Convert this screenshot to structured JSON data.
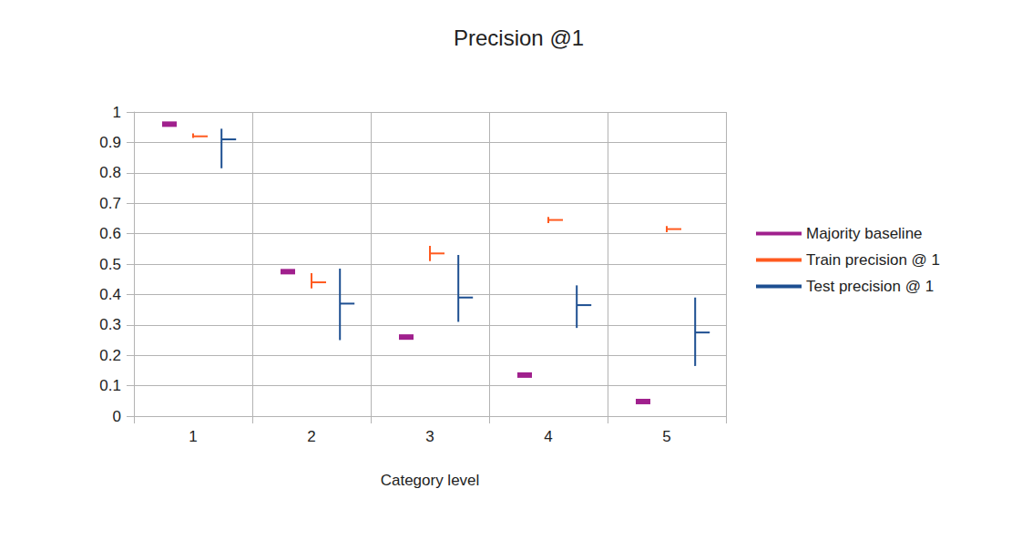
{
  "chart_data": {
    "type": "errorbar",
    "title": "Precision @1",
    "x_label": "Category level",
    "categories": [
      "1",
      "2",
      "3",
      "4",
      "5"
    ],
    "series": [
      {
        "name": "Majority baseline",
        "color": "#a0208d",
        "marker": "dash",
        "values": [
          0.96,
          0.475,
          0.26,
          0.135,
          0.048
        ]
      },
      {
        "name": "Train precision @ 1",
        "color": "#ff5a1f",
        "marker": "errorbar",
        "values": [
          0.92,
          0.44,
          0.535,
          0.645,
          0.615
        ],
        "lower": [
          0.915,
          0.42,
          0.51,
          0.635,
          0.605
        ],
        "upper": [
          0.93,
          0.47,
          0.56,
          0.655,
          0.625
        ]
      },
      {
        "name": "Test precision @ 1",
        "color": "#1d4f91",
        "marker": "errorbar",
        "values": [
          0.91,
          0.37,
          0.39,
          0.365,
          0.275
        ],
        "lower": [
          0.815,
          0.25,
          0.31,
          0.29,
          0.165
        ],
        "upper": [
          0.945,
          0.485,
          0.53,
          0.43,
          0.39
        ]
      }
    ],
    "ylim": [
      0,
      1
    ],
    "yticks": [
      0,
      0.1,
      0.2,
      0.3,
      0.4,
      0.5,
      0.6,
      0.7,
      0.8,
      0.9,
      1
    ],
    "grid": true,
    "legend": "right"
  }
}
